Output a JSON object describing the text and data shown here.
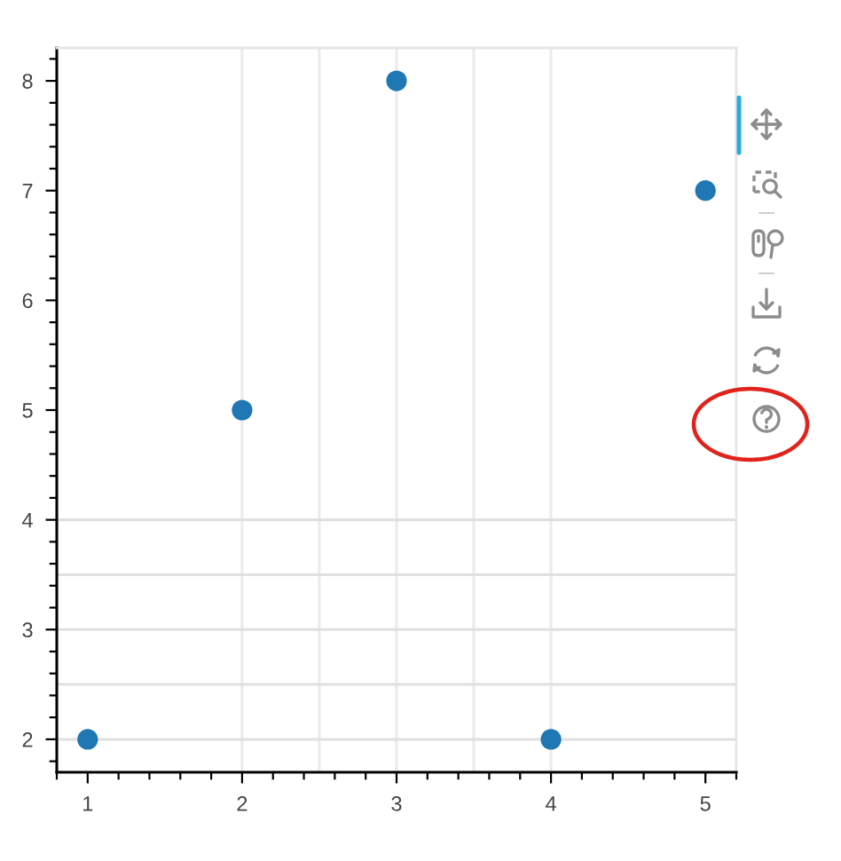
{
  "chart_data": {
    "type": "scatter",
    "x": [
      1,
      2,
      3,
      4,
      5
    ],
    "values": [
      2,
      5,
      8,
      2,
      7
    ],
    "color": "#1f77b4",
    "marker": "circle",
    "xlim": [
      0.8,
      5.2
    ],
    "ylim": [
      1.7,
      8.3
    ],
    "xticks": [
      {
        "value": 0.8,
        "label": null
      },
      1,
      {
        "value": 1.2,
        "label": null
      },
      {
        "value": 1.4,
        "label": null
      },
      {
        "value": 1.6,
        "label": null
      },
      {
        "value": 1.8,
        "label": null
      },
      2,
      {
        "value": 2.2,
        "label": null
      },
      {
        "value": 2.4,
        "label": null
      },
      {
        "value": 2.6,
        "label": null
      },
      {
        "value": 2.8,
        "label": null
      },
      3,
      {
        "value": 3.2,
        "label": null
      },
      {
        "value": 3.4,
        "label": null
      },
      {
        "value": 3.6,
        "label": null
      },
      {
        "value": 3.8,
        "label": null
      },
      4,
      {
        "value": 4.2,
        "label": null
      },
      {
        "value": 4.4,
        "label": null
      },
      {
        "value": 4.6,
        "label": null
      },
      {
        "value": 4.8,
        "label": null
      },
      5,
      {
        "value": 5.2,
        "label": null
      }
    ],
    "yticks": [
      {
        "value": 1.8,
        "label": null
      },
      2,
      {
        "value": 2.2,
        "label": null
      },
      {
        "value": 2.4,
        "label": null
      },
      {
        "value": 2.6,
        "label": null
      },
      {
        "value": 2.8,
        "label": null
      },
      3,
      {
        "value": 3.2,
        "label": null
      },
      {
        "value": 3.4,
        "label": null
      },
      {
        "value": 3.6,
        "label": null
      },
      {
        "value": 3.8,
        "label": null
      },
      4,
      {
        "value": 4.2,
        "label": null
      },
      {
        "value": 4.4,
        "label": null
      },
      {
        "value": 4.6,
        "label": null
      },
      {
        "value": 4.8,
        "label": null
      },
      5,
      {
        "value": 5.2,
        "label": null
      },
      {
        "value": 5.4,
        "label": null
      },
      {
        "value": 5.6,
        "label": null
      },
      {
        "value": 5.8,
        "label": null
      },
      6,
      {
        "value": 6.2,
        "label": null
      },
      {
        "value": 6.4,
        "label": null
      },
      {
        "value": 6.6,
        "label": null
      },
      {
        "value": 6.8,
        "label": null
      },
      7,
      {
        "value": 7.2,
        "label": null
      },
      {
        "value": 7.4,
        "label": null
      },
      {
        "value": 7.6,
        "label": null
      },
      {
        "value": 7.8,
        "label": null
      },
      8,
      {
        "value": 8.2,
        "label": null
      }
    ],
    "ref_lines": [
      {
        "axis": "x",
        "value": 2,
        "color": "#ebebeb"
      },
      {
        "axis": "x",
        "value": 2.5,
        "color": "#ebebeb"
      },
      {
        "axis": "x",
        "value": 3,
        "color": "#ebebeb"
      },
      {
        "axis": "x",
        "value": 3.5,
        "color": "#ebebeb"
      },
      {
        "axis": "x",
        "value": 4,
        "color": "#ebebeb"
      },
      {
        "axis": "y",
        "value": 2,
        "color": "#e0e0e0"
      },
      {
        "axis": "y",
        "value": 2.5,
        "color": "#e0e0e0"
      },
      {
        "axis": "y",
        "value": 3,
        "color": "#e0e0e0"
      },
      {
        "axis": "y",
        "value": 3.5,
        "color": "#e0e0e0"
      },
      {
        "axis": "y",
        "value": 4,
        "color": "#e0e0e0"
      }
    ]
  }
}
